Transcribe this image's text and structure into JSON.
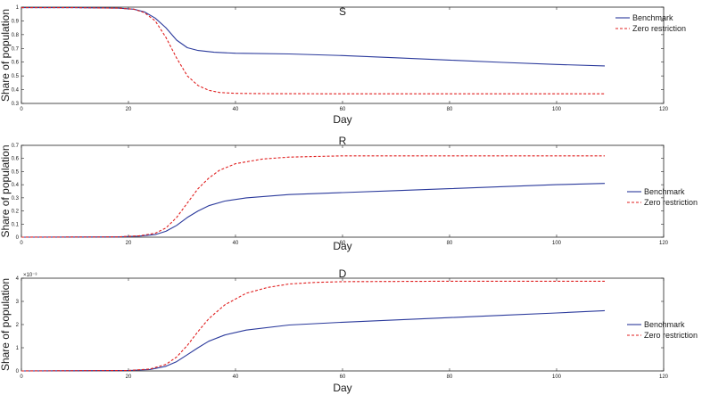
{
  "colors": {
    "benchmark": "#2b3a9c",
    "zero_restriction": "#e01f1f",
    "axes": "#222222"
  },
  "chart_data": [
    {
      "type": "line",
      "title": "S",
      "xlabel": "Day",
      "ylabel": "Share of population",
      "xlim": [
        0,
        120
      ],
      "ylim": [
        0.3,
        1.0
      ],
      "xticks": [
        "0",
        "20",
        "40",
        "60",
        "80",
        "100",
        "120"
      ],
      "yticks": [
        "0.3",
        "0.4",
        "0.5",
        "0.6",
        "0.7",
        "0.8",
        "0.9",
        "1"
      ],
      "y_multiplier_label": "",
      "legend_position": "top-right",
      "grid": false,
      "series": [
        {
          "name": "Benchmark",
          "color": "#2b3a9c",
          "dash": "solid",
          "x": [
            0,
            10,
            18,
            21,
            23,
            25,
            27,
            29,
            31,
            33,
            36,
            40,
            50,
            60,
            70,
            80,
            90,
            100,
            109
          ],
          "values": [
            0.996,
            0.996,
            0.993,
            0.985,
            0.965,
            0.92,
            0.85,
            0.76,
            0.705,
            0.685,
            0.672,
            0.665,
            0.66,
            0.648,
            0.632,
            0.615,
            0.598,
            0.583,
            0.573
          ]
        },
        {
          "name": "Zero restriction",
          "color": "#e01f1f",
          "dash": "dashed",
          "x": [
            0,
            10,
            18,
            21,
            23,
            25,
            27,
            29,
            31,
            33,
            35,
            37,
            40,
            45,
            60,
            80,
            109
          ],
          "values": [
            0.996,
            0.996,
            0.993,
            0.985,
            0.96,
            0.9,
            0.78,
            0.63,
            0.5,
            0.43,
            0.395,
            0.38,
            0.373,
            0.371,
            0.37,
            0.37,
            0.37
          ]
        }
      ]
    },
    {
      "type": "line",
      "title": "R",
      "xlabel": "Day",
      "ylabel": "Share of population",
      "xlim": [
        0,
        120
      ],
      "ylim": [
        0,
        0.7
      ],
      "xticks": [
        "0",
        "20",
        "40",
        "60",
        "80",
        "100",
        "120"
      ],
      "yticks": [
        "0",
        "0.1",
        "0.2",
        "0.3",
        "0.4",
        "0.5",
        "0.6",
        "0.7"
      ],
      "y_multiplier_label": "",
      "legend_position": "right",
      "grid": false,
      "series": [
        {
          "name": "Benchmark",
          "color": "#2b3a9c",
          "dash": "solid",
          "x": [
            0,
            18,
            22,
            25,
            27,
            29,
            31,
            33,
            35,
            38,
            42,
            50,
            60,
            70,
            80,
            90,
            100,
            109
          ],
          "values": [
            0,
            0.002,
            0.008,
            0.02,
            0.045,
            0.09,
            0.15,
            0.2,
            0.24,
            0.275,
            0.3,
            0.325,
            0.34,
            0.355,
            0.37,
            0.385,
            0.4,
            0.41
          ]
        },
        {
          "name": "Zero restriction",
          "color": "#e01f1f",
          "dash": "dashed",
          "x": [
            0,
            18,
            22,
            25,
            27,
            29,
            31,
            33,
            35,
            37,
            40,
            45,
            50,
            60,
            80,
            109
          ],
          "values": [
            0,
            0.002,
            0.01,
            0.03,
            0.07,
            0.15,
            0.26,
            0.37,
            0.45,
            0.51,
            0.56,
            0.595,
            0.61,
            0.62,
            0.62,
            0.62
          ]
        }
      ]
    },
    {
      "type": "line",
      "title": "D",
      "xlabel": "Day",
      "ylabel": "Share of population",
      "xlim": [
        0,
        120
      ],
      "ylim": [
        0,
        4
      ],
      "xticks": [
        "0",
        "20",
        "40",
        "60",
        "80",
        "100",
        "120"
      ],
      "yticks": [
        "0",
        "1",
        "2",
        "3",
        "4"
      ],
      "y_multiplier_label": "×10⁻³",
      "legend_position": "right",
      "grid": false,
      "series": [
        {
          "name": "Benchmark",
          "color": "#2b3a9c",
          "dash": "solid",
          "x": [
            0,
            20,
            24,
            27,
            29,
            31,
            33,
            35,
            38,
            42,
            50,
            60,
            70,
            80,
            90,
            100,
            109
          ],
          "values": [
            0,
            0.02,
            0.06,
            0.2,
            0.4,
            0.7,
            1.0,
            1.28,
            1.55,
            1.76,
            1.98,
            2.1,
            2.2,
            2.3,
            2.4,
            2.5,
            2.6
          ]
        },
        {
          "name": "Zero restriction",
          "color": "#e01f1f",
          "dash": "dashed",
          "x": [
            0,
            20,
            24,
            27,
            29,
            31,
            33,
            35,
            38,
            42,
            46,
            50,
            55,
            60,
            80,
            109
          ],
          "values": [
            0,
            0.02,
            0.08,
            0.28,
            0.6,
            1.1,
            1.7,
            2.25,
            2.85,
            3.35,
            3.6,
            3.75,
            3.82,
            3.85,
            3.87,
            3.87
          ]
        }
      ]
    }
  ]
}
